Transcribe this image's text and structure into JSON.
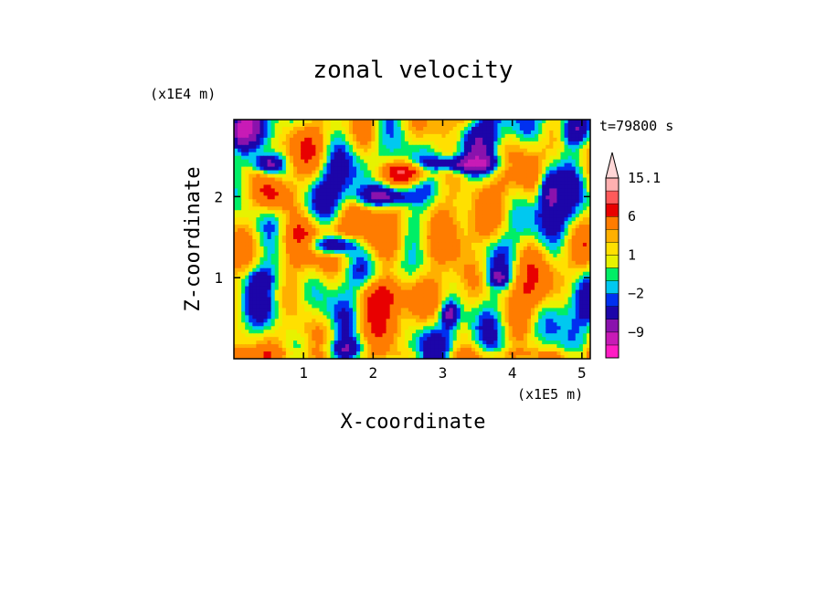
{
  "chart_data": {
    "type": "heatmap",
    "title": "zonal velocity",
    "xlabel": "X-coordinate",
    "ylabel": "Z-coordinate",
    "x_unit": "(x1E5 m)",
    "y_unit": "(x1E4 m)",
    "time_label": "t=79800 s",
    "xlim": [
      0,
      5.12
    ],
    "ylim": [
      0,
      2.95
    ],
    "x_ticks": [
      1,
      2,
      3,
      4,
      5
    ],
    "y_ticks": [
      1,
      2
    ],
    "grid": false,
    "colorbar": {
      "levels": [
        -15,
        -12,
        -9,
        -6,
        -3,
        -2,
        -1,
        0,
        1,
        2,
        3,
        6,
        9,
        12,
        15.1
      ],
      "colors": [
        "#ff1dc4",
        "#c81bb6",
        "#8a12ad",
        "#1c05a9",
        "#0030f0",
        "#00c8f0",
        "#00ee66",
        "#e7f200",
        "#ffe000",
        "#ffb000",
        "#ff7c00",
        "#e80000",
        "#ff5a5a",
        "#ffb0b0"
      ],
      "tick_labels": [
        "15.1",
        "6",
        "1",
        "−2",
        "−9"
      ],
      "tick_values": [
        15.1,
        6,
        1,
        -2,
        -9
      ],
      "overflow_color": "#ffd7d7"
    },
    "field_description": "u(x,z) zonal velocity field on 2-D domain, banded values approx. -12 to 15"
  }
}
